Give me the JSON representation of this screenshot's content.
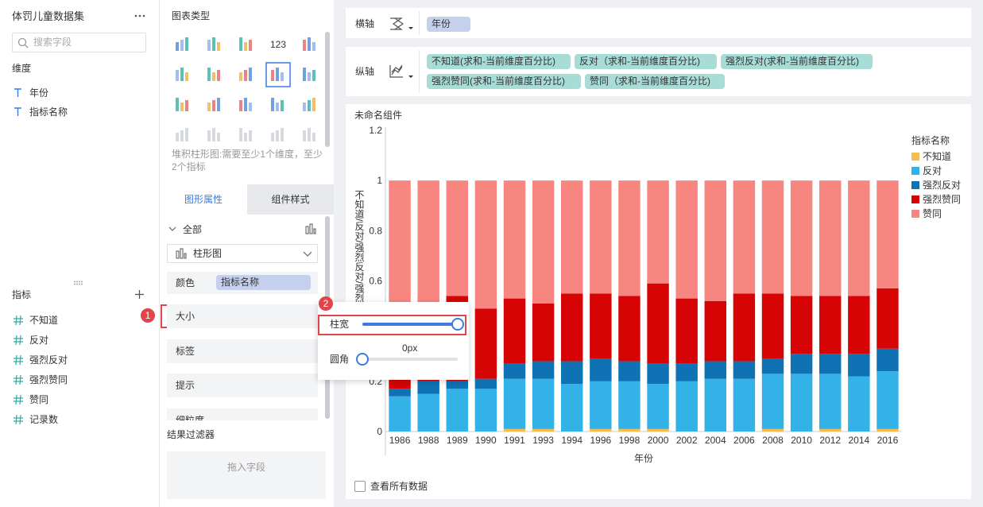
{
  "left_panel": {
    "dataset": "体罚儿童数据集",
    "search_placeholder": "搜索字段",
    "dimensions_title": "维度",
    "dimensions": [
      "年份",
      "指标名称"
    ],
    "measures_title": "指标",
    "measures": [
      "不知道",
      "反对",
      "强烈反对",
      "强烈赞同",
      "赞同",
      "记录数"
    ]
  },
  "middle_panel": {
    "chart_types_title": "图表类型",
    "icon_text": "123",
    "chart_type_hint": "堆积柱形图:需要至少1个维度，至少2个指标",
    "tabs": [
      "图形属性",
      "组件样式"
    ],
    "all_label": "全部",
    "chart_kind": "柱形图",
    "color_label": "颜色",
    "color_field": "指标名称",
    "properties": [
      "大小",
      "标签",
      "提示",
      "细粒度"
    ],
    "result_filter_title": "结果过滤器",
    "drop_hint": "拖入字段"
  },
  "size_popup": {
    "bar_width_label": "柱宽",
    "corner_label": "圆角",
    "corner_value": "0px"
  },
  "badges": [
    "1",
    "2"
  ],
  "x_shelf": {
    "label": "横轴",
    "fields": [
      "年份"
    ]
  },
  "y_shelf": {
    "label": "纵轴",
    "fields": [
      "不知道(求和-当前维度百分比)",
      "反对（求和-当前维度百分比)",
      "强烈反对(求和-当前维度百分比)",
      "强烈赞同(求和-当前维度百分比)",
      "赞同（求和-当前维度百分比)"
    ]
  },
  "widget": {
    "title": "未命名组件",
    "show_all_data": "查看所有数据"
  },
  "chart_data": {
    "type": "stacked_bar",
    "x_label": "年份",
    "y_label": "不知道/反对/强烈反对/强烈赞同/赞同",
    "legend_title": "指标名称",
    "legend_position": "right",
    "grid": false,
    "categories": [
      "1986",
      "1988",
      "1989",
      "1990",
      "1991",
      "1993",
      "1994",
      "1996",
      "1998",
      "2000",
      "2002",
      "2004",
      "2006",
      "2008",
      "2010",
      "2012",
      "2014",
      "2016"
    ],
    "ylim": [
      0,
      1.2
    ],
    "yticks": [
      0,
      0.2,
      0.4,
      0.6,
      0.8,
      1,
      1.2
    ],
    "series": [
      {
        "name": "不知道",
        "color": "#f5bd4f",
        "values": [
          0,
          0,
          0,
          0,
          0.01,
          0.01,
          0,
          0.01,
          0.01,
          0.01,
          0,
          0,
          0,
          0.01,
          0,
          0.01,
          0,
          0.01
        ]
      },
      {
        "name": "反对",
        "color": "#33b2e8",
        "values": [
          0.14,
          0.15,
          0.17,
          0.17,
          0.2,
          0.2,
          0.19,
          0.19,
          0.19,
          0.18,
          0.2,
          0.21,
          0.21,
          0.22,
          0.23,
          0.22,
          0.22,
          0.23
        ]
      },
      {
        "name": "强烈反对",
        "color": "#0f72b4",
        "values": [
          0.03,
          0.05,
          0.03,
          0.04,
          0.06,
          0.07,
          0.09,
          0.09,
          0.08,
          0.08,
          0.07,
          0.07,
          0.07,
          0.06,
          0.08,
          0.08,
          0.09,
          0.09
        ]
      },
      {
        "name": "强烈赞同",
        "color": "#d60404",
        "values": [
          0.26,
          0.28,
          0.34,
          0.28,
          0.26,
          0.23,
          0.27,
          0.26,
          0.26,
          0.32,
          0.26,
          0.24,
          0.27,
          0.26,
          0.23,
          0.23,
          0.23,
          0.24
        ]
      },
      {
        "name": "赞同",
        "color": "#f6867f",
        "values": [
          0.57,
          0.52,
          0.46,
          0.51,
          0.47,
          0.49,
          0.45,
          0.45,
          0.46,
          0.41,
          0.47,
          0.48,
          0.45,
          0.45,
          0.46,
          0.46,
          0.46,
          0.43
        ]
      }
    ]
  }
}
